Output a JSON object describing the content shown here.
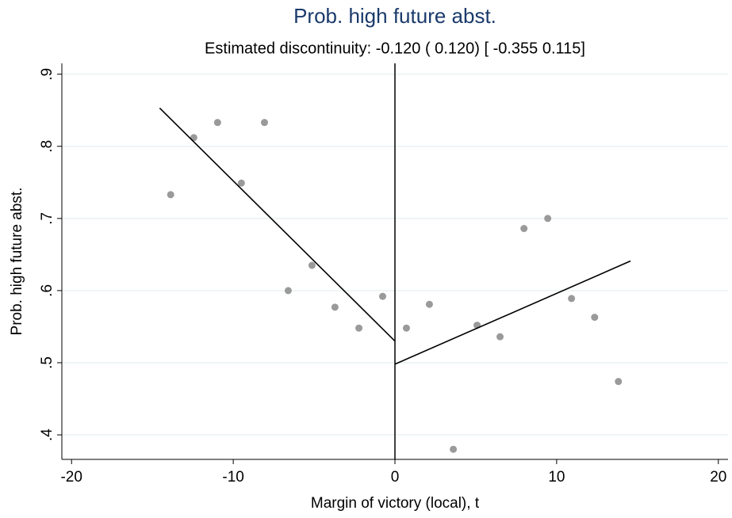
{
  "chart_data": {
    "type": "scatter",
    "title": "Prob. high future abst.",
    "subtitle": "Estimated discontinuity: -0.120 ( 0.120) [ -0.355 0.115]",
    "x_label": "Margin of victory (local), t",
    "y_label": "Prob. high future abst.",
    "x": [
      -13.87,
      -12.44,
      -10.97,
      -9.5,
      -8.07,
      -6.6,
      -5.13,
      -3.71,
      -2.23,
      -0.76,
      0.71,
      2.13,
      3.61,
      5.08,
      6.5,
      7.98,
      9.45,
      10.92,
      12.35,
      13.82
    ],
    "values": [
      0.733,
      0.812,
      0.833,
      0.749,
      0.833,
      0.6,
      0.635,
      0.577,
      0.548,
      0.592,
      0.548,
      0.581,
      0.38,
      0.552,
      0.536,
      0.686,
      0.7,
      0.589,
      0.563,
      0.474
    ],
    "color": "#9a9a9a",
    "fit_lines": [
      {
        "x": [
          -14.55,
          0
        ],
        "y": [
          0.853,
          0.53
        ]
      },
      {
        "x": [
          0,
          14.57
        ],
        "y": [
          0.498,
          0.641
        ]
      }
    ],
    "fit_color": "#000000",
    "cutoff": 0,
    "xlim": [
      -20.6,
      20.6
    ],
    "ylim": [
      0.366,
      0.915
    ],
    "xticks": [
      -20,
      -10,
      0,
      10,
      20
    ],
    "yticks": [
      {
        "value": 0.4,
        "label": ".4"
      },
      {
        "value": 0.5,
        "label": ".5"
      },
      {
        "value": 0.6,
        "label": ".6"
      },
      {
        "value": 0.7,
        "label": ".7"
      },
      {
        "value": 0.8,
        "label": ".8"
      },
      {
        "value": 0.9,
        "label": ".9"
      }
    ],
    "grid": true
  }
}
